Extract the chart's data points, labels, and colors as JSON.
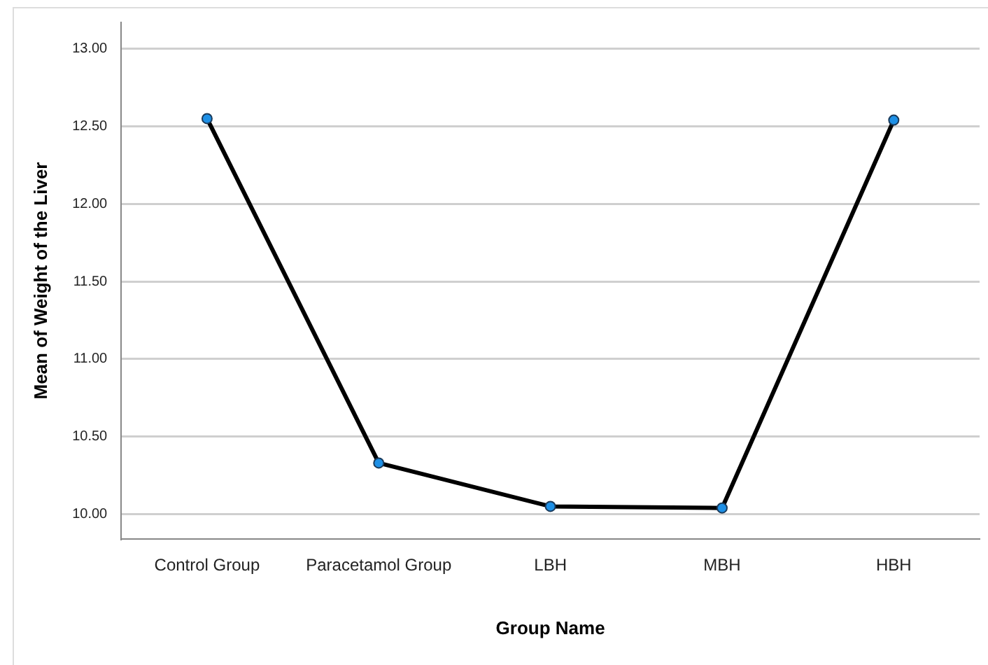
{
  "chart_data": {
    "type": "line",
    "xlabel": "Group Name",
    "ylabel": "Mean of Weight of the Liver",
    "categories": [
      "Control Group",
      "Paracetamol Group",
      "LBH",
      "MBH",
      "HBH"
    ],
    "series": [
      {
        "color": "#000000",
        "values": [
          12.55,
          10.33,
          10.05,
          10.04,
          12.54
        ]
      }
    ],
    "ylim": [
      9.84,
      13.17
    ],
    "yticks": [
      {
        "value": 10,
        "label": "10.00"
      },
      {
        "value": 10.5,
        "label": "10.50"
      },
      {
        "value": 11,
        "label": "11.00"
      },
      {
        "value": 11.5,
        "label": "11.50"
      },
      {
        "value": 12,
        "label": "12.00"
      },
      {
        "value": 12.5,
        "label": "12.50"
      },
      {
        "value": 13,
        "label": "13.00"
      }
    ],
    "grid": "y",
    "legend": false,
    "marker": "circle",
    "line_style": "solid"
  }
}
